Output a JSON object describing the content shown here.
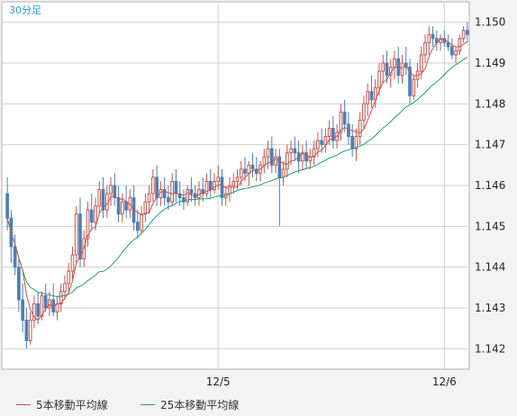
{
  "timeframe_label": "30分足",
  "colors": {
    "ma5": "#c8524d",
    "ma25": "#1f9e73",
    "bull": "#c8524d",
    "bear": "#4b7fb6",
    "grid": "#cfcfcf",
    "plot_bg": "#ffffff"
  },
  "chart_data": {
    "type": "candlestick",
    "y_ticks": [
      "1.150",
      "1.149",
      "1.148",
      "1.147",
      "1.146",
      "1.145",
      "1.144",
      "1.143",
      "1.142"
    ],
    "y_tick_values": [
      1.15,
      1.149,
      1.148,
      1.147,
      1.146,
      1.145,
      1.144,
      1.143,
      1.142
    ],
    "x_ticks": [
      "12/5",
      "12/6"
    ],
    "x_tick_index": [
      55,
      114
    ],
    "ylim": [
      1.1415,
      1.1505
    ],
    "grid": true,
    "legend_position": "bottom-left",
    "legend": [
      "5本移動平均線",
      "25本移動平均線"
    ],
    "candles": [
      [
        1.1458,
        1.1462,
        1.1449,
        1.1452
      ],
      [
        1.1452,
        1.1454,
        1.1441,
        1.1445
      ],
      [
        1.1445,
        1.1448,
        1.1438,
        1.144
      ],
      [
        1.144,
        1.1442,
        1.1429,
        1.1432
      ],
      [
        1.1432,
        1.1436,
        1.1424,
        1.1427
      ],
      [
        1.1427,
        1.143,
        1.142,
        1.1422
      ],
      [
        1.1422,
        1.1429,
        1.1421,
        1.1427
      ],
      [
        1.1427,
        1.1433,
        1.1425,
        1.1431
      ],
      [
        1.1431,
        1.1434,
        1.1426,
        1.1428
      ],
      [
        1.1428,
        1.1434,
        1.1427,
        1.1433
      ],
      [
        1.1433,
        1.1436,
        1.1429,
        1.143
      ],
      [
        1.143,
        1.1434,
        1.1428,
        1.1432
      ],
      [
        1.1432,
        1.1436,
        1.1428,
        1.1429
      ],
      [
        1.1429,
        1.1433,
        1.1427,
        1.1431
      ],
      [
        1.1431,
        1.1436,
        1.1429,
        1.1434
      ],
      [
        1.1434,
        1.1438,
        1.1432,
        1.1436
      ],
      [
        1.1436,
        1.1441,
        1.1434,
        1.1439
      ],
      [
        1.1439,
        1.1445,
        1.1437,
        1.1443
      ],
      [
        1.1443,
        1.1455,
        1.1441,
        1.1453
      ],
      [
        1.1453,
        1.1457,
        1.144,
        1.1442
      ],
      [
        1.1442,
        1.1449,
        1.144,
        1.1447
      ],
      [
        1.1447,
        1.1456,
        1.1445,
        1.1454
      ],
      [
        1.1454,
        1.1458,
        1.1449,
        1.1451
      ],
      [
        1.1451,
        1.1457,
        1.1449,
        1.1455
      ],
      [
        1.1455,
        1.1461,
        1.1453,
        1.1459
      ],
      [
        1.1459,
        1.1462,
        1.1452,
        1.1454
      ],
      [
        1.1454,
        1.146,
        1.1452,
        1.1458
      ],
      [
        1.1458,
        1.1462,
        1.1455,
        1.146
      ],
      [
        1.146,
        1.1463,
        1.1455,
        1.1457
      ],
      [
        1.1457,
        1.146,
        1.1451,
        1.1453
      ],
      [
        1.1453,
        1.1458,
        1.1451,
        1.1456
      ],
      [
        1.1456,
        1.146,
        1.1452,
        1.1454
      ],
      [
        1.1454,
        1.1459,
        1.1452,
        1.1457
      ],
      [
        1.1457,
        1.146,
        1.1449,
        1.1451
      ],
      [
        1.1451,
        1.1454,
        1.1447,
        1.1449
      ],
      [
        1.1449,
        1.1455,
        1.1448,
        1.1453
      ],
      [
        1.1453,
        1.1458,
        1.1451,
        1.1456
      ],
      [
        1.1456,
        1.146,
        1.1453,
        1.1458
      ],
      [
        1.1458,
        1.1464,
        1.1456,
        1.1462
      ],
      [
        1.1462,
        1.1465,
        1.1455,
        1.1457
      ],
      [
        1.1457,
        1.1461,
        1.1455,
        1.1459
      ],
      [
        1.1459,
        1.1462,
        1.1455,
        1.1457
      ],
      [
        1.1457,
        1.146,
        1.1454,
        1.1456
      ],
      [
        1.1456,
        1.1463,
        1.1455,
        1.1461
      ],
      [
        1.1461,
        1.1464,
        1.1456,
        1.1458
      ],
      [
        1.1458,
        1.1461,
        1.1455,
        1.1457
      ],
      [
        1.1457,
        1.1459,
        1.1454,
        1.1456
      ],
      [
        1.1456,
        1.146,
        1.1455,
        1.1459
      ],
      [
        1.1459,
        1.1462,
        1.1456,
        1.1458
      ],
      [
        1.1458,
        1.146,
        1.1455,
        1.1457
      ],
      [
        1.1457,
        1.1461,
        1.1455,
        1.1459
      ],
      [
        1.1459,
        1.1462,
        1.1456,
        1.1458
      ],
      [
        1.1458,
        1.1463,
        1.1457,
        1.1461
      ],
      [
        1.1461,
        1.1464,
        1.1457,
        1.1459
      ],
      [
        1.1459,
        1.1463,
        1.1458,
        1.1461
      ],
      [
        1.1461,
        1.1465,
        1.1459,
        1.1462
      ],
      [
        1.1462,
        1.1464,
        1.1455,
        1.1457
      ],
      [
        1.1457,
        1.146,
        1.1455,
        1.1458
      ],
      [
        1.1458,
        1.1462,
        1.1456,
        1.146
      ],
      [
        1.146,
        1.1463,
        1.1458,
        1.1461
      ],
      [
        1.1461,
        1.1464,
        1.1459,
        1.1462
      ],
      [
        1.1462,
        1.1466,
        1.146,
        1.1464
      ],
      [
        1.1464,
        1.1467,
        1.1461,
        1.1463
      ],
      [
        1.1463,
        1.1466,
        1.146,
        1.1465
      ],
      [
        1.1465,
        1.1468,
        1.1462,
        1.1464
      ],
      [
        1.1464,
        1.1467,
        1.1461,
        1.1463
      ],
      [
        1.1463,
        1.1466,
        1.1461,
        1.1465
      ],
      [
        1.1465,
        1.1469,
        1.1463,
        1.1467
      ],
      [
        1.1467,
        1.1471,
        1.1464,
        1.1469
      ],
      [
        1.1469,
        1.1472,
        1.1463,
        1.1465
      ],
      [
        1.1465,
        1.1469,
        1.1463,
        1.1467
      ],
      [
        1.1467,
        1.1469,
        1.145,
        1.1462
      ],
      [
        1.1462,
        1.1466,
        1.146,
        1.1464
      ],
      [
        1.1464,
        1.147,
        1.1462,
        1.1468
      ],
      [
        1.1468,
        1.1471,
        1.1465,
        1.1469
      ],
      [
        1.1469,
        1.1472,
        1.1466,
        1.1468
      ],
      [
        1.1468,
        1.1471,
        1.1463,
        1.1466
      ],
      [
        1.1466,
        1.147,
        1.1464,
        1.1468
      ],
      [
        1.1468,
        1.1471,
        1.1464,
        1.1466
      ],
      [
        1.1466,
        1.1469,
        1.1464,
        1.1467
      ],
      [
        1.1467,
        1.1471,
        1.1465,
        1.1469
      ],
      [
        1.1469,
        1.1473,
        1.1467,
        1.1471
      ],
      [
        1.1471,
        1.1474,
        1.1468,
        1.147
      ],
      [
        1.147,
        1.1474,
        1.1468,
        1.1472
      ],
      [
        1.1472,
        1.1476,
        1.147,
        1.1474
      ],
      [
        1.1474,
        1.1477,
        1.1469,
        1.1471
      ],
      [
        1.1471,
        1.1475,
        1.1469,
        1.1473
      ],
      [
        1.1473,
        1.148,
        1.1471,
        1.1478
      ],
      [
        1.1478,
        1.1481,
        1.1473,
        1.1475
      ],
      [
        1.1475,
        1.1478,
        1.147,
        1.1472
      ],
      [
        1.1472,
        1.1475,
        1.1467,
        1.1469
      ],
      [
        1.1469,
        1.1474,
        1.1466,
        1.1472
      ],
      [
        1.1472,
        1.1478,
        1.147,
        1.1476
      ],
      [
        1.1476,
        1.1482,
        1.1474,
        1.148
      ],
      [
        1.148,
        1.1485,
        1.1477,
        1.1483
      ],
      [
        1.1483,
        1.1487,
        1.1479,
        1.1481
      ],
      [
        1.1481,
        1.1486,
        1.1479,
        1.1484
      ],
      [
        1.1484,
        1.149,
        1.1482,
        1.1488
      ],
      [
        1.1488,
        1.1492,
        1.1485,
        1.149
      ],
      [
        1.149,
        1.1493,
        1.1485,
        1.1487
      ],
      [
        1.1487,
        1.1491,
        1.1484,
        1.1489
      ],
      [
        1.1489,
        1.1493,
        1.1486,
        1.1491
      ],
      [
        1.1491,
        1.1494,
        1.1485,
        1.1487
      ],
      [
        1.1487,
        1.1492,
        1.1485,
        1.149
      ],
      [
        1.149,
        1.1494,
        1.1487,
        1.1489
      ],
      [
        1.1489,
        1.1491,
        1.148,
        1.1482
      ],
      [
        1.1482,
        1.1487,
        1.1481,
        1.1486
      ],
      [
        1.1486,
        1.149,
        1.1484,
        1.1488
      ],
      [
        1.1488,
        1.1494,
        1.1486,
        1.1492
      ],
      [
        1.1492,
        1.1497,
        1.149,
        1.1495
      ],
      [
        1.1495,
        1.1499,
        1.1492,
        1.1497
      ],
      [
        1.1497,
        1.1499,
        1.1494,
        1.1496
      ],
      [
        1.1496,
        1.1498,
        1.1493,
        1.1495
      ],
      [
        1.1495,
        1.1497,
        1.1493,
        1.1496
      ],
      [
        1.1496,
        1.1498,
        1.1494,
        1.1495
      ],
      [
        1.1495,
        1.1497,
        1.1493,
        1.1494
      ],
      [
        1.1494,
        1.1496,
        1.1491,
        1.1492
      ],
      [
        1.1492,
        1.1494,
        1.149,
        1.1493
      ],
      [
        1.1493,
        1.1497,
        1.1492,
        1.1496
      ],
      [
        1.1496,
        1.1499,
        1.1495,
        1.1498
      ],
      [
        1.1498,
        1.15,
        1.1495,
        1.1497
      ]
    ]
  }
}
